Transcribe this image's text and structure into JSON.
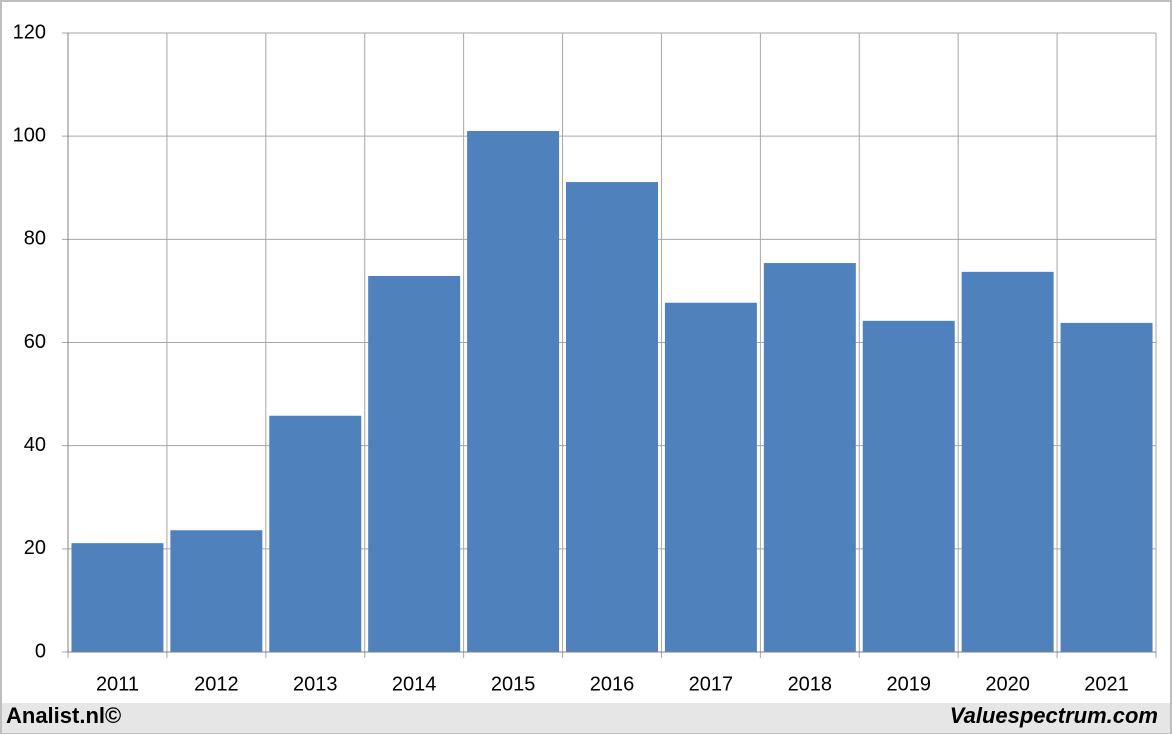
{
  "chart_data": {
    "type": "bar",
    "categories": [
      "2011",
      "2012",
      "2013",
      "2014",
      "2015",
      "2016",
      "2017",
      "2018",
      "2019",
      "2020",
      "2021"
    ],
    "values": [
      21.1,
      23.6,
      45.8,
      72.9,
      101.0,
      91.1,
      67.7,
      75.4,
      64.2,
      73.7,
      63.8
    ],
    "color": "#4f81bd",
    "ylim": [
      0,
      120
    ],
    "yticks": [
      0,
      20,
      40,
      60,
      80,
      100,
      120
    ],
    "grid": true
  },
  "footer": {
    "left": "Analist.nl©",
    "right": "Valuespectrum.com"
  }
}
